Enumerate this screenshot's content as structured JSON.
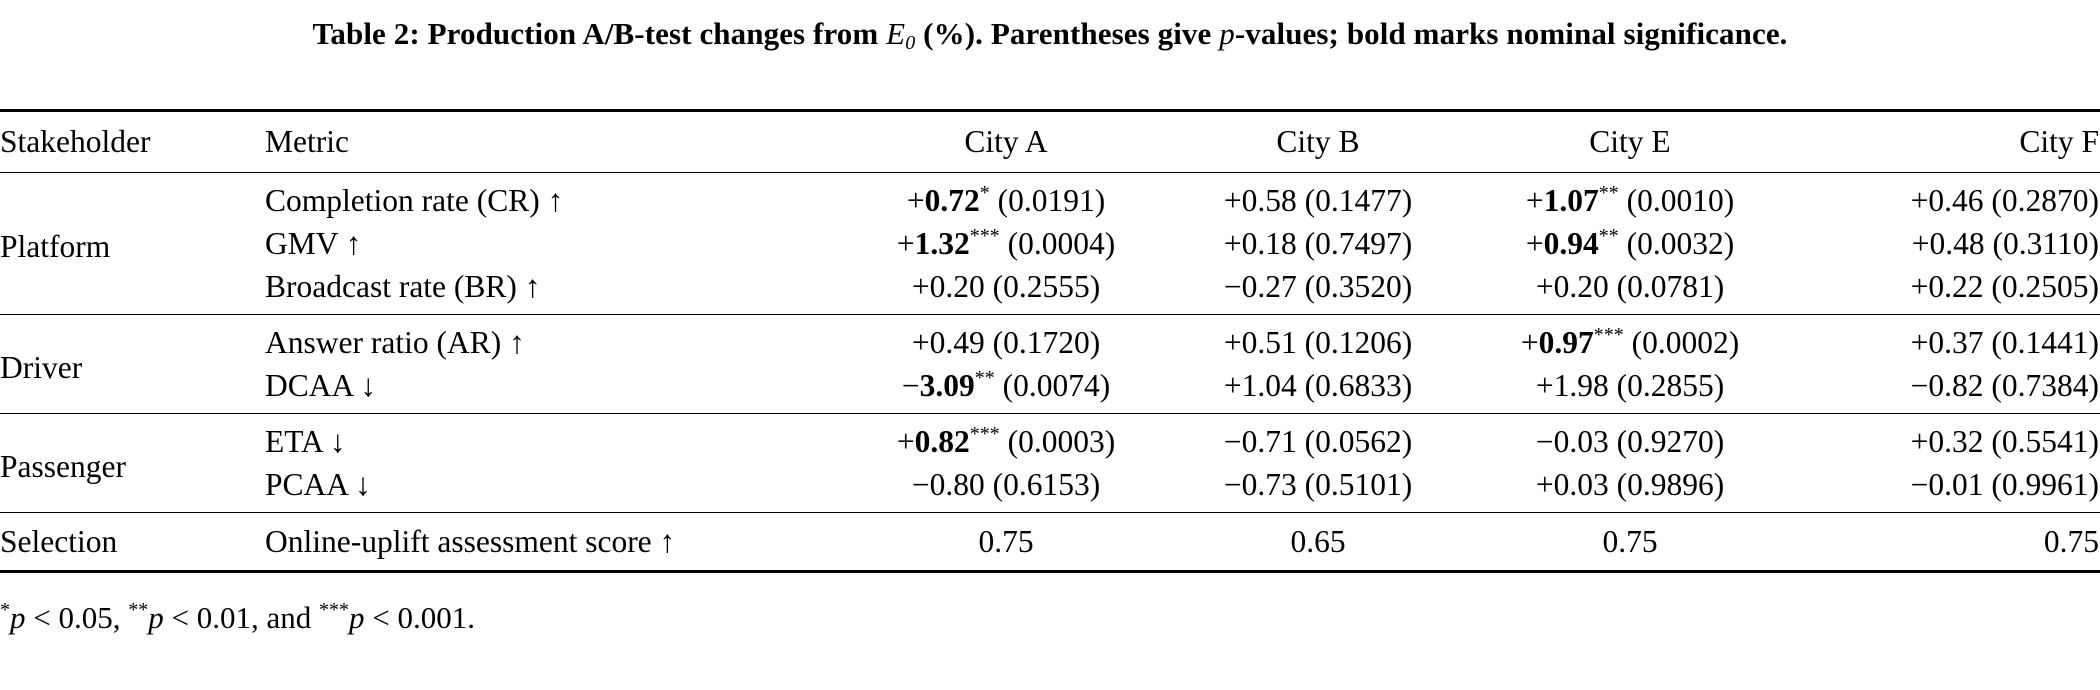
{
  "caption": {
    "prefix": "Table 2: Production A/B-test changes from ",
    "baseline_symbol": "E",
    "baseline_subscript": "0",
    "middle": " (%). Parentheses give ",
    "p_symbol": "p",
    "suffix": "-values; bold marks nominal significance."
  },
  "header": {
    "stakeholder": "Stakeholder",
    "metric": "Metric",
    "city_a": "City A",
    "city_b": "City B",
    "city_e": "City E",
    "city_f": "City F"
  },
  "groups": {
    "platform": {
      "name": "Platform",
      "rows": [
        {
          "metric": "Completion rate (CR) ↑",
          "a": {
            "sign": "+",
            "value": "0.72",
            "stars": "*",
            "p": " (0.0191)"
          },
          "b": {
            "text": "+0.58 (0.1477)"
          },
          "e": {
            "sign": "+",
            "value": "1.07",
            "stars": "**",
            "p": " (0.0010)"
          },
          "f": {
            "text": "+0.46 (0.2870)"
          }
        },
        {
          "metric": "GMV ↑",
          "a": {
            "sign": "+",
            "value": "1.32",
            "stars": "***",
            "p": " (0.0004)"
          },
          "b": {
            "text": "+0.18 (0.7497)"
          },
          "e": {
            "sign": "+",
            "value": "0.94",
            "stars": "**",
            "p": " (0.0032)"
          },
          "f": {
            "text": "+0.48 (0.3110)"
          }
        },
        {
          "metric": "Broadcast rate (BR) ↑",
          "a": {
            "text": "+0.20 (0.2555)"
          },
          "b": {
            "text": "−0.27 (0.3520)"
          },
          "e": {
            "text": "+0.20 (0.0781)"
          },
          "f": {
            "text": "+0.22 (0.2505)"
          }
        }
      ]
    },
    "driver": {
      "name": "Driver",
      "rows": [
        {
          "metric": "Answer ratio (AR) ↑",
          "a": {
            "text": "+0.49 (0.1720)"
          },
          "b": {
            "text": "+0.51 (0.1206)"
          },
          "e": {
            "sign": "+",
            "value": "0.97",
            "stars": "***",
            "p": " (0.0002)"
          },
          "f": {
            "text": "+0.37 (0.1441)"
          }
        },
        {
          "metric": "DCAA ↓",
          "a": {
            "sign": "−",
            "value": "3.09",
            "stars": "**",
            "p": " (0.0074)"
          },
          "b": {
            "text": "+1.04 (0.6833)"
          },
          "e": {
            "text": "+1.98 (0.2855)"
          },
          "f": {
            "text": "−0.82 (0.7384)"
          }
        }
      ]
    },
    "passenger": {
      "name": "Passenger",
      "rows": [
        {
          "metric": "ETA ↓",
          "a": {
            "sign": "+",
            "value": "0.82",
            "stars": "***",
            "p": " (0.0003)"
          },
          "b": {
            "text": "−0.71 (0.0562)"
          },
          "e": {
            "text": "−0.03 (0.9270)"
          },
          "f": {
            "text": "+0.32 (0.5541)"
          }
        },
        {
          "metric": "PCAA ↓",
          "a": {
            "text": "−0.80 (0.6153)"
          },
          "b": {
            "text": "−0.73 (0.5101)"
          },
          "e": {
            "text": "+0.03 (0.9896)"
          },
          "f": {
            "text": "−0.01 (0.9961)"
          }
        }
      ]
    },
    "selection": {
      "name": "Selection",
      "metric": "Online-uplift assessment score ↑",
      "a": "0.75",
      "b": "0.65",
      "e": "0.75",
      "f": "0.75"
    }
  },
  "footnote": {
    "s1": "*",
    "t1": "p",
    "r1": " < 0.05, ",
    "s2": "**",
    "t2": "p",
    "r2": " < 0.01, and ",
    "s3": "***",
    "t3": "p",
    "r3": " < 0.001."
  }
}
